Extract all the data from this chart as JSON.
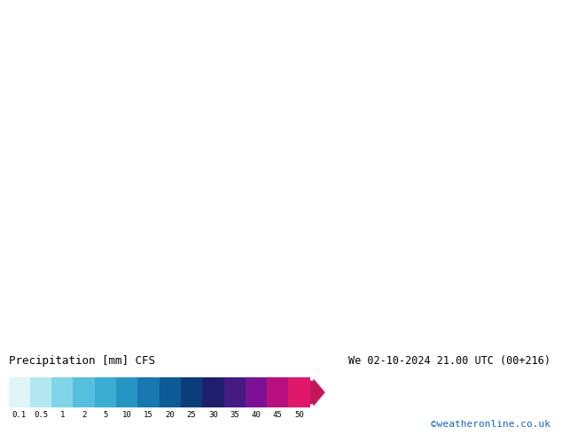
{
  "title_left": "Precipitation [mm] CFS",
  "title_right": "We 02-10-2024 21.00 UTC (00+216)",
  "watermark": "©weatheronline.co.uk",
  "colorbar_labels": [
    "0.1",
    "0.5",
    "1",
    "2",
    "5",
    "10",
    "15",
    "20",
    "25",
    "30",
    "35",
    "40",
    "45",
    "50"
  ],
  "colorbar_colors": [
    "#dff5f7",
    "#b3e8f0",
    "#82d5e8",
    "#57bfde",
    "#3aadd4",
    "#2596c4",
    "#1878b0",
    "#0d5a96",
    "#0a3d7a",
    "#1f1f6e",
    "#451a82",
    "#7b1296",
    "#b81080",
    "#e0186a"
  ],
  "arrow_color": "#c2185b",
  "fig_width": 6.34,
  "fig_height": 4.9,
  "dpi": 100,
  "map_bg_land": "#a8d4a0",
  "map_bg_ocean": "#c8e8f0",
  "text_color_left": "#000000",
  "text_color_right": "#000000",
  "watermark_color": "#1565c0"
}
